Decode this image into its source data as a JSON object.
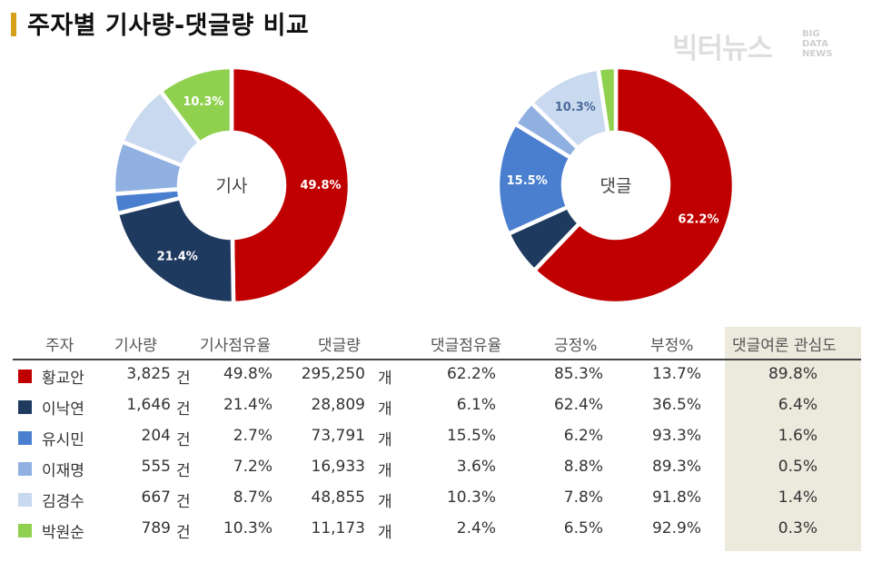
{
  "title": "주자별 기사량-댓글량 비교",
  "logo": {
    "main": "빅터뉴스",
    "sub1": "BIG",
    "sub2": "DATA",
    "sub3": "NEWS"
  },
  "colors": {
    "accent": "#d4a017",
    "series": [
      "#c00000",
      "#1f3a5f",
      "#4a7fcf",
      "#8fb0e0",
      "#c9d9f0",
      "#8fd14f"
    ]
  },
  "chart_data": [
    {
      "type": "pie",
      "center_label": "기사",
      "categories": [
        "황교안",
        "이낙연",
        "유시민",
        "이재명",
        "김경수",
        "박원순"
      ],
      "values": [
        49.8,
        21.4,
        2.7,
        7.2,
        8.7,
        10.3
      ],
      "shown_labels": [
        "49.8%",
        "21.4%",
        "",
        "",
        "",
        "10.3%"
      ]
    },
    {
      "type": "pie",
      "center_label": "댓글",
      "categories": [
        "황교안",
        "이낙연",
        "유시민",
        "이재명",
        "김경수",
        "박원순"
      ],
      "values": [
        62.2,
        6.1,
        15.5,
        3.6,
        10.3,
        2.4
      ],
      "shown_labels": [
        "62.2%",
        "",
        "15.5%",
        "",
        "10.3%",
        ""
      ]
    }
  ],
  "table": {
    "headers": [
      "주자",
      "기사량",
      "기사점유율",
      "댓글량",
      "댓글점유율",
      "긍정%",
      "부정%",
      "댓글여론 관심도"
    ],
    "rows": [
      {
        "name": "황교안",
        "articles": "3,825",
        "article_unit": "건",
        "article_share": "49.8%",
        "comments": "295,250",
        "comment_unit": "개",
        "comment_share": "62.2%",
        "pos": "85.3%",
        "neg": "13.7%",
        "interest": "89.8%"
      },
      {
        "name": "이낙연",
        "articles": "1,646",
        "article_unit": "건",
        "article_share": "21.4%",
        "comments": "28,809",
        "comment_unit": "개",
        "comment_share": "6.1%",
        "pos": "62.4%",
        "neg": "36.5%",
        "interest": "6.4%"
      },
      {
        "name": "유시민",
        "articles": "204",
        "article_unit": "건",
        "article_share": "2.7%",
        "comments": "73,791",
        "comment_unit": "개",
        "comment_share": "15.5%",
        "pos": "6.2%",
        "neg": "93.3%",
        "interest": "1.6%"
      },
      {
        "name": "이재명",
        "articles": "555",
        "article_unit": "건",
        "article_share": "7.2%",
        "comments": "16,933",
        "comment_unit": "개",
        "comment_share": "3.6%",
        "pos": "8.8%",
        "neg": "89.3%",
        "interest": "0.5%"
      },
      {
        "name": "김경수",
        "articles": "667",
        "article_unit": "건",
        "article_share": "8.7%",
        "comments": "48,855",
        "comment_unit": "개",
        "comment_share": "10.3%",
        "pos": "7.8%",
        "neg": "91.8%",
        "interest": "1.4%"
      },
      {
        "name": "박원순",
        "articles": "789",
        "article_unit": "건",
        "article_share": "10.3%",
        "comments": "11,173",
        "comment_unit": "개",
        "comment_share": "2.4%",
        "pos": "6.5%",
        "neg": "92.9%",
        "interest": "0.3%"
      }
    ]
  }
}
